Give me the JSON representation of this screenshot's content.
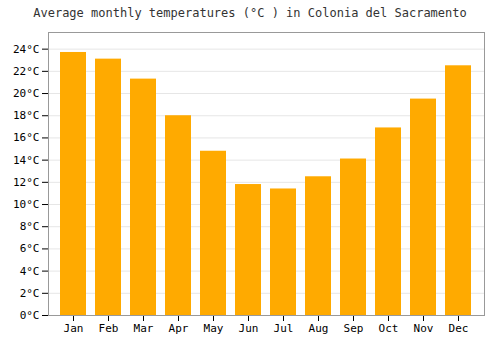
{
  "chart_data": {
    "type": "bar",
    "title": "Average monthly temperatures (°C ) in Colonia del Sacramento",
    "categories": [
      "Jan",
      "Feb",
      "Mar",
      "Apr",
      "May",
      "Jun",
      "Jul",
      "Aug",
      "Sep",
      "Oct",
      "Nov",
      "Dec"
    ],
    "values": [
      23.7,
      23.1,
      21.3,
      18.0,
      14.8,
      11.8,
      11.4,
      12.5,
      14.1,
      16.9,
      19.5,
      22.5
    ],
    "color": "#FFAA00",
    "ylim": [
      0,
      25.5
    ],
    "yticks": [
      {
        "value": 0,
        "label": "0°C"
      },
      {
        "value": 2,
        "label": "2°C"
      },
      {
        "value": 4,
        "label": "4°C"
      },
      {
        "value": 6,
        "label": "6°C"
      },
      {
        "value": 8,
        "label": "8°C"
      },
      {
        "value": 10,
        "label": "10°C"
      },
      {
        "value": 12,
        "label": "12°C"
      },
      {
        "value": 14,
        "label": "14°C"
      },
      {
        "value": 16,
        "label": "16°C"
      },
      {
        "value": 18,
        "label": "18°C"
      },
      {
        "value": 20,
        "label": "20°C"
      },
      {
        "value": 22,
        "label": "22°C"
      },
      {
        "value": 24,
        "label": "24°C"
      }
    ],
    "grid": true
  }
}
